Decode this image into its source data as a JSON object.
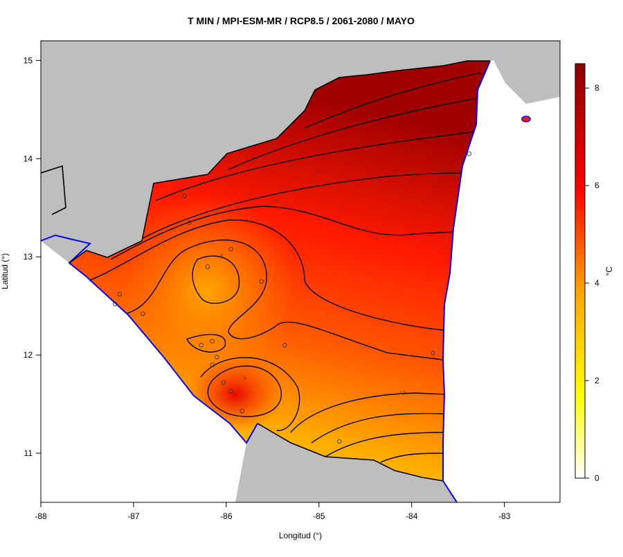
{
  "chart_data": {
    "type": "heatmap",
    "title": "T MIN / MPI-ESM-MR / RCP8.5 / 2061-2080 / MAYO",
    "xlabel": "Longitud (°)",
    "ylabel": "Latitud (°)",
    "xlim": [
      -88,
      -82.4
    ],
    "ylim": [
      10.5,
      15.2
    ],
    "x_ticks": [
      {
        "value": -88,
        "label": "-88"
      },
      {
        "value": -87,
        "label": "-87"
      },
      {
        "value": -86,
        "label": "-86"
      },
      {
        "value": -85,
        "label": "-85"
      },
      {
        "value": -84,
        "label": "-84"
      },
      {
        "value": -83,
        "label": "-83"
      }
    ],
    "y_ticks": [
      {
        "value": 11,
        "label": "11"
      },
      {
        "value": 12,
        "label": "12"
      },
      {
        "value": 13,
        "label": "13"
      },
      {
        "value": 14,
        "label": "14"
      },
      {
        "value": 15,
        "label": "15"
      }
    ],
    "colorbar": {
      "unit": "°C",
      "range": [
        0,
        8.5
      ],
      "ticks": [
        {
          "value": 0,
          "label": "0"
        },
        {
          "value": 2,
          "label": "2"
        },
        {
          "value": 4,
          "label": "4"
        },
        {
          "value": 6,
          "label": "6"
        },
        {
          "value": 8,
          "label": "8"
        }
      ],
      "colors": [
        "#ffffff",
        "#ffff00",
        "#ffa500",
        "#ff0000",
        "#8b0000"
      ]
    },
    "contour_labels": [
      {
        "label": "6.5",
        "x": -85.0,
        "y": 13.85
      },
      {
        "label": "6",
        "x": -85.45,
        "y": 13.55
      },
      {
        "label": "5.5",
        "x": -85.75,
        "y": 13.35
      },
      {
        "label": "4",
        "x": -86.05,
        "y": 13.0
      },
      {
        "label": "4.5",
        "x": -84.1,
        "y": 11.6
      },
      {
        "label": "5",
        "x": -85.8,
        "y": 11.75
      }
    ],
    "stations": [
      {
        "lon": -86.45,
        "lat": 13.62
      },
      {
        "lon": -86.4,
        "lat": 13.35
      },
      {
        "lon": -85.95,
        "lat": 13.08
      },
      {
        "lon": -86.2,
        "lat": 12.9
      },
      {
        "lon": -85.62,
        "lat": 12.75
      },
      {
        "lon": -87.15,
        "lat": 12.62
      },
      {
        "lon": -87.2,
        "lat": 12.52
      },
      {
        "lon": -86.9,
        "lat": 12.42
      },
      {
        "lon": -86.15,
        "lat": 12.14
      },
      {
        "lon": -86.27,
        "lat": 12.1
      },
      {
        "lon": -85.37,
        "lat": 12.1
      },
      {
        "lon": -86.1,
        "lat": 11.98
      },
      {
        "lon": -86.15,
        "lat": 11.9
      },
      {
        "lon": -86.03,
        "lat": 11.72
      },
      {
        "lon": -85.95,
        "lat": 11.63
      },
      {
        "lon": -85.83,
        "lat": 11.43
      },
      {
        "lon": -84.78,
        "lat": 11.12
      },
      {
        "lon": -83.77,
        "lat": 12.02
      },
      {
        "lon": -83.38,
        "lat": 14.05
      }
    ]
  }
}
